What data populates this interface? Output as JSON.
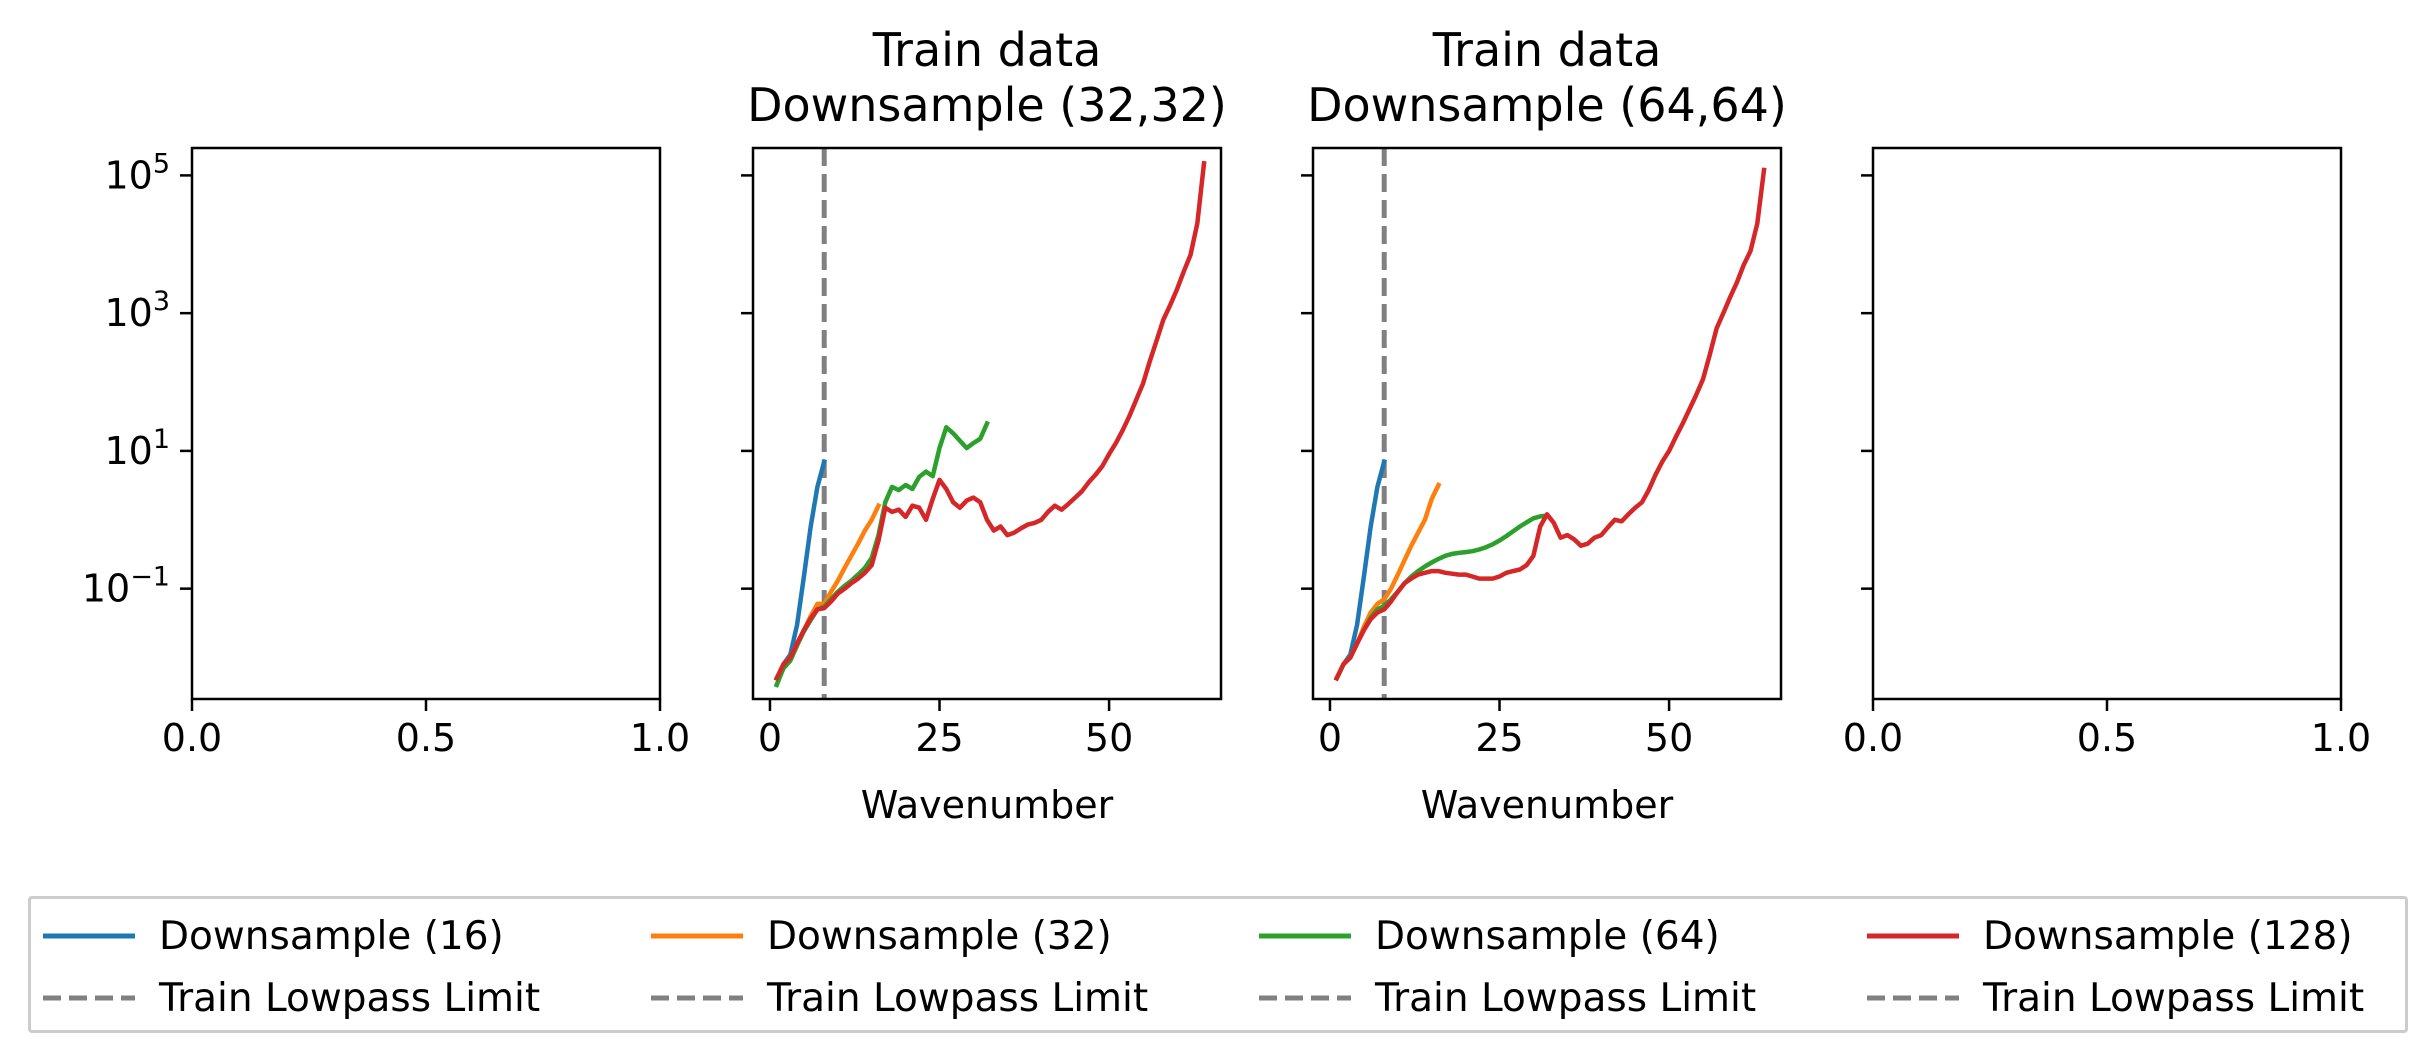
{
  "figure": {
    "xlabel": "Wavenumber",
    "y_tick_labels": [
      {
        "base": "10",
        "exp": "5",
        "value": 100000
      },
      {
        "base": "10",
        "exp": "3",
        "value": 1000
      },
      {
        "base": "10",
        "exp": "1",
        "value": 10
      },
      {
        "base": "10",
        "exp": "−1",
        "value": 0.1
      }
    ],
    "yscale": "log",
    "ylim": [
      0.0025,
      250000
    ],
    "vline": {
      "x": 8,
      "color": "#808080",
      "style": "dashed"
    },
    "legend_placement": "bottom-center"
  },
  "legend": {
    "items": [
      {
        "label": "Downsample (16)",
        "color": "#1f77b4",
        "style": "solid"
      },
      {
        "label": "Downsample (32)",
        "color": "#ff7f0e",
        "style": "solid"
      },
      {
        "label": "Downsample (64)",
        "color": "#2ca02c",
        "style": "solid"
      },
      {
        "label": "Downsample (128)",
        "color": "#d62728",
        "style": "solid"
      },
      {
        "label": "Train Lowpass Limit",
        "color": "#808080",
        "style": "dashed"
      },
      {
        "label": "Train Lowpass Limit",
        "color": "#808080",
        "style": "dashed"
      },
      {
        "label": "Train Lowpass Limit",
        "color": "#808080",
        "style": "dashed"
      },
      {
        "label": "Train Lowpass Limit",
        "color": "#808080",
        "style": "dashed"
      }
    ]
  },
  "chart_data": [
    {
      "type": "line",
      "title": "",
      "xlim": [
        0,
        1
      ],
      "x_ticks": [
        "0.0",
        "0.5",
        "1.0"
      ],
      "x_tick_values": [
        0,
        0.5,
        1
      ],
      "show_y_tick_labels": true,
      "show_xlabel": false,
      "series": []
    },
    {
      "type": "line",
      "title": [
        "Train data",
        "Downsample (32,32)"
      ],
      "xlim": [
        -2.5,
        66.5
      ],
      "x_ticks": [
        "0",
        "25",
        "50"
      ],
      "x_tick_values": [
        0,
        25,
        50
      ],
      "show_y_tick_labels": false,
      "show_xlabel": true,
      "vline": 8,
      "series": [
        {
          "name": "Downsample (16)",
          "color": "#1f77b4",
          "points": [
            [
              1,
              0.005
            ],
            [
              2,
              0.008
            ],
            [
              3,
              0.011
            ],
            [
              4,
              0.03
            ],
            [
              5,
              0.15
            ],
            [
              6,
              0.8
            ],
            [
              7,
              3
            ],
            [
              8,
              7
            ]
          ]
        },
        {
          "name": "Downsample (32)",
          "color": "#ff7f0e",
          "points": [
            [
              1,
              0.005
            ],
            [
              2,
              0.008
            ],
            [
              3,
              0.01
            ],
            [
              4,
              0.016
            ],
            [
              5,
              0.025
            ],
            [
              6,
              0.04
            ],
            [
              7,
              0.06
            ],
            [
              8,
              0.06
            ],
            [
              9,
              0.09
            ],
            [
              10,
              0.13
            ],
            [
              11,
              0.2
            ],
            [
              12,
              0.3
            ],
            [
              13,
              0.45
            ],
            [
              14,
              0.7
            ],
            [
              15,
              1.0
            ],
            [
              16,
              1.6
            ]
          ]
        },
        {
          "name": "Downsample (64)",
          "color": "#2ca02c",
          "points": [
            [
              1,
              0.004
            ],
            [
              2,
              0.007
            ],
            [
              3,
              0.009
            ],
            [
              4,
              0.015
            ],
            [
              5,
              0.024
            ],
            [
              6,
              0.035
            ],
            [
              7,
              0.05
            ],
            [
              8,
              0.055
            ],
            [
              9,
              0.07
            ],
            [
              10,
              0.09
            ],
            [
              11,
              0.11
            ],
            [
              12,
              0.13
            ],
            [
              13,
              0.16
            ],
            [
              14,
              0.2
            ],
            [
              15,
              0.28
            ],
            [
              16,
              0.6
            ],
            [
              17,
              1.8
            ],
            [
              18,
              3.0
            ],
            [
              19,
              2.7
            ],
            [
              20,
              3.2
            ],
            [
              21,
              2.8
            ],
            [
              22,
              4.2
            ],
            [
              23,
              5.0
            ],
            [
              24,
              4.3
            ],
            [
              25,
              11
            ],
            [
              26,
              22
            ],
            [
              27,
              18
            ],
            [
              28,
              14
            ],
            [
              29,
              11
            ],
            [
              30,
              13
            ],
            [
              31,
              15
            ],
            [
              32,
              25
            ]
          ]
        },
        {
          "name": "Downsample (128)",
          "color": "#d62728",
          "points": [
            [
              1,
              0.005
            ],
            [
              2,
              0.008
            ],
            [
              3,
              0.01
            ],
            [
              4,
              0.016
            ],
            [
              5,
              0.025
            ],
            [
              6,
              0.037
            ],
            [
              7,
              0.05
            ],
            [
              8,
              0.052
            ],
            [
              9,
              0.065
            ],
            [
              10,
              0.085
            ],
            [
              11,
              0.1
            ],
            [
              12,
              0.12
            ],
            [
              13,
              0.14
            ],
            [
              14,
              0.17
            ],
            [
              15,
              0.22
            ],
            [
              16,
              0.5
            ],
            [
              17,
              1.5
            ],
            [
              18,
              1.3
            ],
            [
              19,
              1.4
            ],
            [
              20,
              1.1
            ],
            [
              21,
              1.6
            ],
            [
              22,
              1.5
            ],
            [
              23,
              1.0
            ],
            [
              24,
              2.0
            ],
            [
              25,
              3.8
            ],
            [
              26,
              2.8
            ],
            [
              27,
              1.8
            ],
            [
              28,
              1.5
            ],
            [
              29,
              1.9
            ],
            [
              30,
              2.1
            ],
            [
              31,
              1.8
            ],
            [
              32,
              1.0
            ],
            [
              33,
              0.7
            ],
            [
              34,
              0.8
            ],
            [
              35,
              0.6
            ],
            [
              36,
              0.65
            ],
            [
              37,
              0.75
            ],
            [
              38,
              0.85
            ],
            [
              39,
              0.9
            ],
            [
              40,
              1.0
            ],
            [
              41,
              1.3
            ],
            [
              42,
              1.6
            ],
            [
              43,
              1.4
            ],
            [
              44,
              1.7
            ],
            [
              45,
              2.1
            ],
            [
              46,
              2.6
            ],
            [
              47,
              3.5
            ],
            [
              48,
              4.5
            ],
            [
              49,
              6
            ],
            [
              50,
              9
            ],
            [
              51,
              13
            ],
            [
              52,
              20
            ],
            [
              53,
              32
            ],
            [
              54,
              55
            ],
            [
              55,
              95
            ],
            [
              56,
              200
            ],
            [
              57,
              400
            ],
            [
              58,
              800
            ],
            [
              59,
              1300
            ],
            [
              60,
              2200
            ],
            [
              61,
              4000
            ],
            [
              62,
              7000
            ],
            [
              63,
              20000
            ],
            [
              64,
              150000
            ]
          ]
        }
      ]
    },
    {
      "type": "line",
      "title": [
        "Train data",
        "Downsample (64,64)"
      ],
      "xlim": [
        -2.5,
        66.5
      ],
      "x_ticks": [
        "0",
        "25",
        "50"
      ],
      "x_tick_values": [
        0,
        25,
        50
      ],
      "show_y_tick_labels": false,
      "show_xlabel": true,
      "vline": 8,
      "series": [
        {
          "name": "Downsample (16)",
          "color": "#1f77b4",
          "points": [
            [
              1,
              0.005
            ],
            [
              2,
              0.008
            ],
            [
              3,
              0.011
            ],
            [
              4,
              0.03
            ],
            [
              5,
              0.15
            ],
            [
              6,
              0.8
            ],
            [
              7,
              3
            ],
            [
              8,
              7
            ]
          ]
        },
        {
          "name": "Downsample (32)",
          "color": "#ff7f0e",
          "points": [
            [
              1,
              0.005
            ],
            [
              2,
              0.008
            ],
            [
              3,
              0.01
            ],
            [
              4,
              0.016
            ],
            [
              5,
              0.028
            ],
            [
              6,
              0.045
            ],
            [
              7,
              0.06
            ],
            [
              8,
              0.07
            ],
            [
              9,
              0.1
            ],
            [
              10,
              0.16
            ],
            [
              11,
              0.26
            ],
            [
              12,
              0.42
            ],
            [
              13,
              0.65
            ],
            [
              14,
              1.0
            ],
            [
              15,
              2.0
            ],
            [
              16,
              3.2
            ]
          ]
        },
        {
          "name": "Downsample (64)",
          "color": "#2ca02c",
          "points": [
            [
              1,
              0.005
            ],
            [
              2,
              0.008
            ],
            [
              3,
              0.01
            ],
            [
              4,
              0.016
            ],
            [
              5,
              0.025
            ],
            [
              6,
              0.038
            ],
            [
              7,
              0.05
            ],
            [
              8,
              0.056
            ],
            [
              9,
              0.07
            ],
            [
              10,
              0.09
            ],
            [
              11,
              0.12
            ],
            [
              12,
              0.15
            ],
            [
              13,
              0.18
            ],
            [
              14,
              0.21
            ],
            [
              15,
              0.24
            ],
            [
              16,
              0.27
            ],
            [
              17,
              0.3
            ],
            [
              18,
              0.32
            ],
            [
              19,
              0.33
            ],
            [
              20,
              0.34
            ],
            [
              21,
              0.35
            ],
            [
              22,
              0.37
            ],
            [
              23,
              0.4
            ],
            [
              24,
              0.44
            ],
            [
              25,
              0.5
            ],
            [
              26,
              0.58
            ],
            [
              27,
              0.68
            ],
            [
              28,
              0.8
            ],
            [
              29,
              0.92
            ],
            [
              30,
              1.05
            ],
            [
              31,
              1.12
            ],
            [
              32,
              1.15
            ]
          ]
        },
        {
          "name": "Downsample (128)",
          "color": "#d62728",
          "points": [
            [
              1,
              0.005
            ],
            [
              2,
              0.008
            ],
            [
              3,
              0.01
            ],
            [
              4,
              0.016
            ],
            [
              5,
              0.025
            ],
            [
              6,
              0.036
            ],
            [
              7,
              0.045
            ],
            [
              8,
              0.05
            ],
            [
              9,
              0.065
            ],
            [
              10,
              0.09
            ],
            [
              11,
              0.12
            ],
            [
              12,
              0.14
            ],
            [
              13,
              0.16
            ],
            [
              14,
              0.17
            ],
            [
              15,
              0.18
            ],
            [
              16,
              0.18
            ],
            [
              17,
              0.17
            ],
            [
              18,
              0.165
            ],
            [
              19,
              0.16
            ],
            [
              20,
              0.16
            ],
            [
              21,
              0.15
            ],
            [
              22,
              0.14
            ],
            [
              23,
              0.14
            ],
            [
              24,
              0.14
            ],
            [
              25,
              0.15
            ],
            [
              26,
              0.17
            ],
            [
              27,
              0.18
            ],
            [
              28,
              0.19
            ],
            [
              29,
              0.22
            ],
            [
              30,
              0.3
            ],
            [
              31,
              0.8
            ],
            [
              32,
              1.2
            ],
            [
              33,
              0.9
            ],
            [
              34,
              0.55
            ],
            [
              35,
              0.6
            ],
            [
              36,
              0.52
            ],
            [
              37,
              0.42
            ],
            [
              38,
              0.45
            ],
            [
              39,
              0.55
            ],
            [
              40,
              0.6
            ],
            [
              41,
              0.78
            ],
            [
              42,
              1.0
            ],
            [
              43,
              0.95
            ],
            [
              44,
              1.2
            ],
            [
              45,
              1.5
            ],
            [
              46,
              1.8
            ],
            [
              47,
              2.7
            ],
            [
              48,
              4.5
            ],
            [
              49,
              7
            ],
            [
              50,
              10
            ],
            [
              51,
              16
            ],
            [
              52,
              25
            ],
            [
              53,
              40
            ],
            [
              54,
              65
            ],
            [
              55,
              110
            ],
            [
              56,
              250
            ],
            [
              57,
              600
            ],
            [
              58,
              1000
            ],
            [
              59,
              1700
            ],
            [
              60,
              2800
            ],
            [
              61,
              5000
            ],
            [
              62,
              8000
            ],
            [
              63,
              20000
            ],
            [
              64,
              120000
            ]
          ]
        }
      ]
    },
    {
      "type": "line",
      "title": "",
      "xlim": [
        0,
        1
      ],
      "x_ticks": [
        "0.0",
        "0.5",
        "1.0"
      ],
      "x_tick_values": [
        0,
        0.5,
        1
      ],
      "show_y_tick_labels": false,
      "show_xlabel": false,
      "series": []
    }
  ]
}
